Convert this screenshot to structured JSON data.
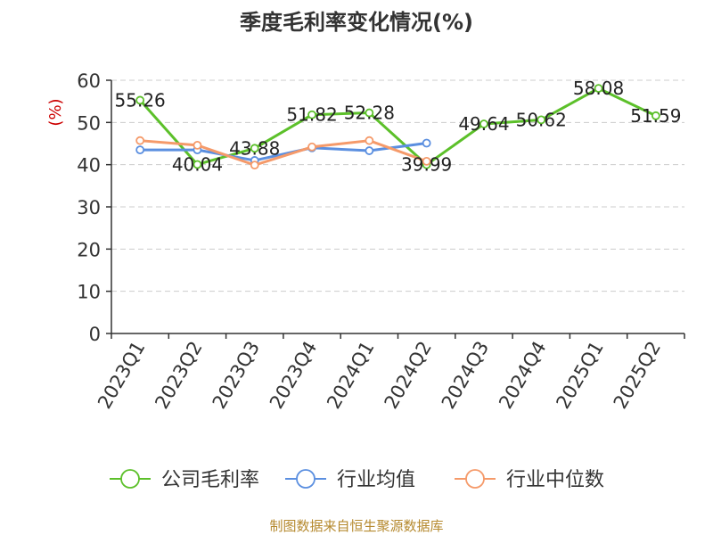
{
  "chart_data": {
    "type": "line",
    "title": "季度毛利率变化情况(%)",
    "ylabel": "(%)",
    "xlabel": "",
    "ylim": [
      0,
      60
    ],
    "yticks": [
      0,
      10,
      20,
      30,
      40,
      50,
      60
    ],
    "grid": "horizontal-dashed",
    "legend_position": "bottom",
    "categories": [
      "2023Q1",
      "2023Q2",
      "2023Q3",
      "2023Q4",
      "2024Q1",
      "2024Q2",
      "2024Q3",
      "2024Q4",
      "2025Q1",
      "2025Q2"
    ],
    "series": [
      {
        "name": "公司毛利率",
        "color": "#5cc02a",
        "values": [
          55.26,
          40.04,
          43.88,
          51.82,
          52.28,
          39.99,
          49.64,
          50.62,
          58.08,
          51.59
        ],
        "labels": [
          "55.26",
          "40.04",
          "43.88",
          "51.82",
          "52.28",
          "39.99",
          "49.64",
          "50.62",
          "58.08",
          "51.59"
        ]
      },
      {
        "name": "行业均值",
        "color": "#5b8fe0",
        "values": [
          43.5,
          43.5,
          41.0,
          44.0,
          43.3,
          45.1,
          null,
          null,
          null,
          null
        ]
      },
      {
        "name": "行业中位数",
        "color": "#f59a6a",
        "values": [
          45.7,
          44.6,
          39.9,
          44.2,
          45.7,
          40.8,
          null,
          null,
          null,
          null
        ]
      }
    ]
  },
  "footer": {
    "source": "制图数据来自恒生聚源数据库"
  },
  "colors": {
    "title": "#333333",
    "ylabel": "#cc0000",
    "axis": "#333333",
    "grid": "#cccccc",
    "source": "#b5892e"
  }
}
